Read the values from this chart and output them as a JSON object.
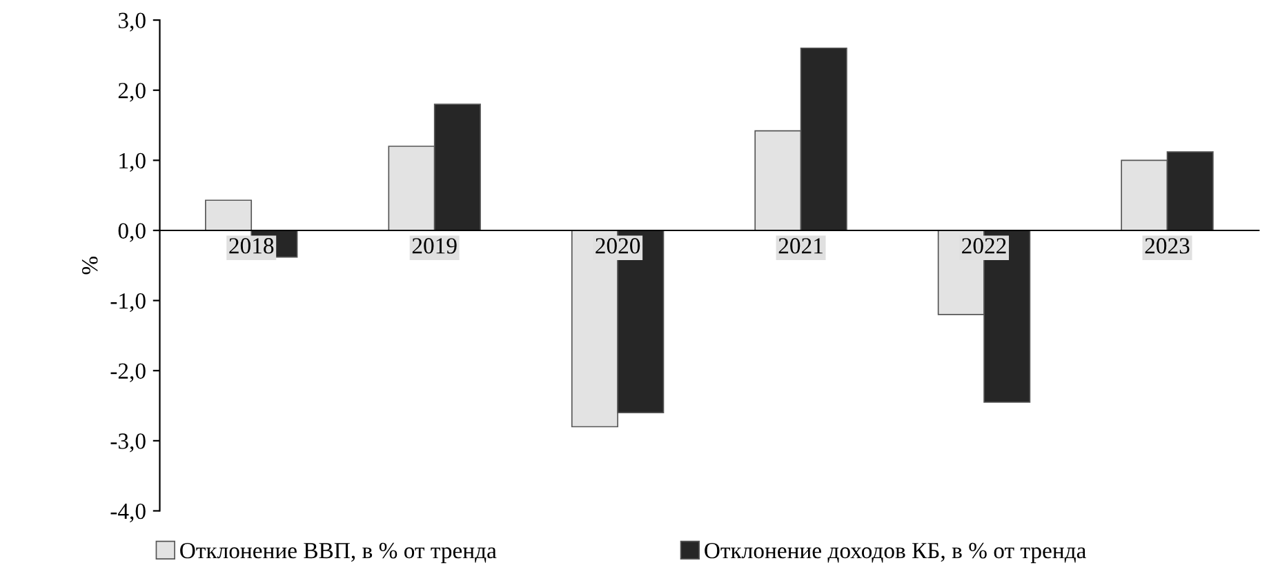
{
  "chart_data": {
    "type": "bar",
    "ylabel": "%",
    "categories": [
      "2018",
      "2019",
      "2020",
      "2021",
      "2022",
      "2023"
    ],
    "series": [
      {
        "name": "Отклонение ВВП, в % от тренда",
        "color": "#e3e3e3",
        "values": [
          0.43,
          1.2,
          -2.8,
          1.42,
          -1.2,
          1.0
        ]
      },
      {
        "name": "Отклонение доходов КБ, в % от тренда",
        "color": "#262626",
        "values": [
          -0.38,
          1.8,
          -2.6,
          2.6,
          -2.45,
          1.12
        ]
      }
    ],
    "ylim": [
      -4,
      3
    ],
    "yticks": [
      {
        "value": -4,
        "label": "-4,0"
      },
      {
        "value": -3,
        "label": "-3,0"
      },
      {
        "value": -2,
        "label": "-2,0"
      },
      {
        "value": -1,
        "label": "-1,0"
      },
      {
        "value": 0,
        "label": "0,0"
      },
      {
        "value": 1,
        "label": "1,0"
      },
      {
        "value": 2,
        "label": "2,0"
      },
      {
        "value": 3,
        "label": "3,0"
      }
    ],
    "grid": false,
    "legend": "bottom"
  }
}
